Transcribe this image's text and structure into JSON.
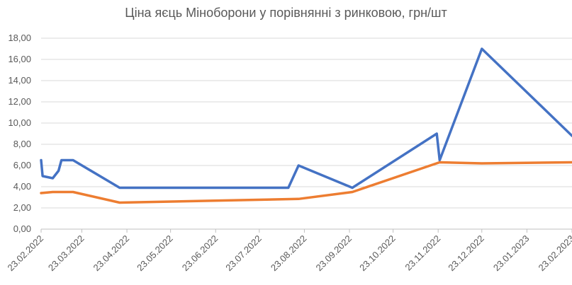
{
  "chart_data": {
    "type": "line",
    "title": "Ціна яєць Міноборони у порівнянні з ринковою, грн/шт",
    "xlabel": "",
    "ylabel": "",
    "ylim": [
      0,
      18
    ],
    "y_ticks": [
      "0,00",
      "2,00",
      "4,00",
      "6,00",
      "8,00",
      "10,00",
      "12,00",
      "14,00",
      "16,00",
      "18,00"
    ],
    "x_range": [
      "2022-02-23",
      "2023-02-23"
    ],
    "x_ticks": [
      {
        "date": "2022-02-23",
        "label": "23.02.2022"
      },
      {
        "date": "2022-03-23",
        "label": "23.03.2022"
      },
      {
        "date": "2022-04-23",
        "label": "23.04.2022"
      },
      {
        "date": "2022-05-23",
        "label": "23.05.2022"
      },
      {
        "date": "2022-06-23",
        "label": "23.06.2022"
      },
      {
        "date": "2022-07-23",
        "label": "23.07.2022"
      },
      {
        "date": "2022-08-23",
        "label": "23.08.2022"
      },
      {
        "date": "2022-09-23",
        "label": "23.09.2022"
      },
      {
        "date": "2022-10-23",
        "label": "23.10.2022"
      },
      {
        "date": "2022-11-23",
        "label": "23.11.2022"
      },
      {
        "date": "2022-12-23",
        "label": "23.12.2022"
      },
      {
        "date": "2023-01-23",
        "label": "23.01.2023"
      },
      {
        "date": "2023-02-23",
        "label": "23.02.2023"
      }
    ],
    "grid": true,
    "legend": "none",
    "series": [
      {
        "color": "#4472C4",
        "points": [
          [
            "2022-02-23",
            6.5
          ],
          [
            "2022-02-24",
            5.0
          ],
          [
            "2022-03-03",
            4.8
          ],
          [
            "2022-03-07",
            5.5
          ],
          [
            "2022-03-09",
            6.5
          ],
          [
            "2022-03-17",
            6.5
          ],
          [
            "2022-04-18",
            3.9
          ],
          [
            "2022-08-12",
            3.9
          ],
          [
            "2022-08-19",
            6.0
          ],
          [
            "2022-09-25",
            3.9
          ],
          [
            "2022-11-22",
            9.0
          ],
          [
            "2022-11-24",
            6.5
          ],
          [
            "2022-12-23",
            17.0
          ],
          [
            "2023-02-23",
            8.8
          ]
        ]
      },
      {
        "color": "#ED7D31",
        "points": [
          [
            "2022-02-23",
            3.4
          ],
          [
            "2022-03-03",
            3.5
          ],
          [
            "2022-03-17",
            3.5
          ],
          [
            "2022-04-18",
            2.5
          ],
          [
            "2022-08-19",
            2.85
          ],
          [
            "2022-09-25",
            3.5
          ],
          [
            "2022-11-24",
            6.3
          ],
          [
            "2022-12-23",
            6.2
          ],
          [
            "2023-02-23",
            6.3
          ]
        ]
      }
    ]
  }
}
